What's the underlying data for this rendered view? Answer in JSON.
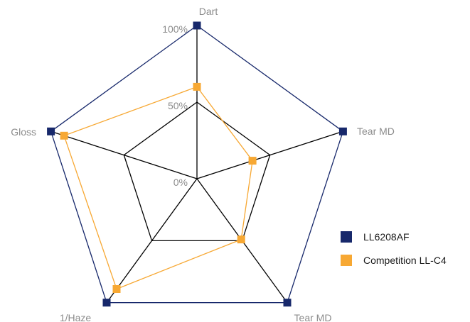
{
  "chart_data": {
    "type": "radar",
    "axes": [
      "Dart",
      "Tear MD",
      "Tear MD",
      "1/Haze",
      "Gloss"
    ],
    "tick_labels": [
      "0%",
      "50%",
      "100%"
    ],
    "rlim": [
      0,
      100
    ],
    "grid_levels": [
      50,
      100
    ],
    "series": [
      {
        "name": "LL6208AF",
        "values": [
          100,
          100,
          100,
          100,
          100
        ],
        "color": "#17286b"
      },
      {
        "name": "Competition LL-C4",
        "values": [
          60,
          38,
          49,
          89,
          91
        ],
        "color": "#f7a833"
      }
    ],
    "legend_position": "right"
  }
}
